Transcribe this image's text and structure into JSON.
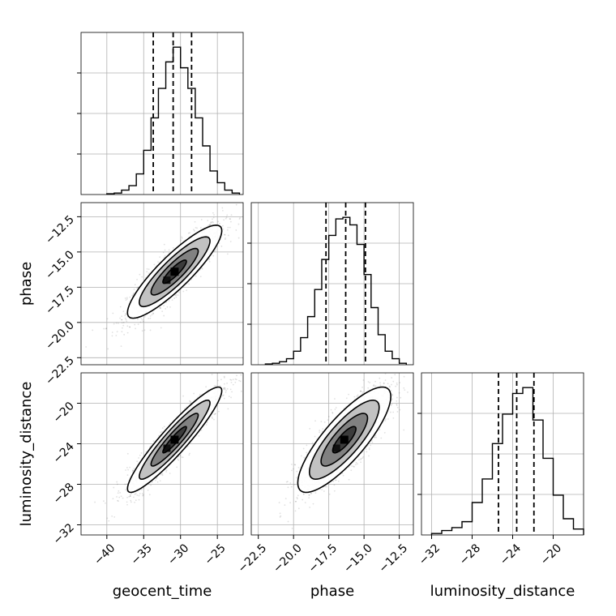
{
  "chart_data": [
    {
      "type": "histogram",
      "panel": "1D marginal",
      "parameter": "geocent_time",
      "xlim": [
        -43.5,
        -21.5
      ],
      "bin_edges": [
        -40,
        -39,
        -38,
        -37,
        -36,
        -35,
        -34,
        -33,
        -32,
        -31,
        -30,
        -29,
        -28,
        -27,
        -26,
        -25,
        -24,
        -23,
        -22
      ],
      "counts": [
        0.5,
        1,
        3,
        6,
        14,
        30,
        52,
        72,
        90,
        100,
        86,
        72,
        52,
        33,
        16,
        8,
        3,
        1
      ],
      "quantiles": [
        -33.7,
        -31.0,
        -28.5
      ],
      "grid": true
    },
    {
      "type": "histogram",
      "panel": "1D marginal",
      "parameter": "phase",
      "xlim": [
        -23.0,
        -11.5
      ],
      "bin_edges": [
        -22,
        -21.5,
        -21,
        -20.5,
        -20,
        -19.5,
        -19,
        -18.5,
        -18,
        -17.5,
        -17,
        -16.5,
        -16,
        -15.5,
        -15,
        -14.5,
        -14,
        -13.5,
        -13,
        -12.5,
        -12
      ],
      "counts": [
        0.5,
        1,
        2,
        4,
        9,
        18,
        32,
        50,
        70,
        86,
        97,
        98,
        93,
        80,
        60,
        38,
        20,
        9,
        4,
        1
      ],
      "quantiles": [
        -17.7,
        -16.3,
        -14.9
      ],
      "grid": true
    },
    {
      "type": "histogram",
      "panel": "1D marginal",
      "parameter": "luminosity_distance",
      "xlim": [
        -33.0,
        -17.0
      ],
      "bin_edges": [
        -32,
        -31,
        -30,
        -29,
        -28,
        -27,
        -26,
        -25,
        -24,
        -23,
        -22,
        -21,
        -20,
        -19,
        -18,
        -17
      ],
      "counts": [
        1,
        3,
        5,
        9,
        22,
        38,
        62,
        82,
        96,
        100,
        78,
        52,
        27,
        11,
        4
      ],
      "quantiles": [
        -25.4,
        -23.6,
        -21.9
      ],
      "grid": true
    },
    {
      "type": "scatter-contour",
      "panel": "2D",
      "x_param": "geocent_time",
      "y_param": "phase",
      "xlim": [
        -43.5,
        -21.5
      ],
      "ylim": [
        -23.0,
        -11.5
      ],
      "mean": [
        -30.8,
        -16.4
      ],
      "sigma": [
        3.2,
        1.65
      ],
      "correlation": 0.88,
      "levels_sigma": [
        0.5,
        1.0,
        1.5,
        2.0
      ],
      "grid": true
    },
    {
      "type": "scatter-contour",
      "panel": "2D",
      "x_param": "geocent_time",
      "y_param": "luminosity_distance",
      "xlim": [
        -43.5,
        -21.5
      ],
      "ylim": [
        -33.0,
        -17.0
      ],
      "mean": [
        -30.8,
        -23.6
      ],
      "sigma": [
        3.2,
        2.6
      ],
      "correlation": 0.93,
      "levels_sigma": [
        0.5,
        1.0,
        1.5,
        2.0
      ],
      "grid": true
    },
    {
      "type": "scatter-contour",
      "panel": "2D",
      "x_param": "phase",
      "y_param": "luminosity_distance",
      "xlim": [
        -23.0,
        -11.5
      ],
      "ylim": [
        -33.0,
        -17.0
      ],
      "mean": [
        -16.4,
        -23.6
      ],
      "sigma": [
        1.65,
        2.6
      ],
      "correlation": 0.82,
      "levels_sigma": [
        0.5,
        1.0,
        1.5,
        2.0
      ],
      "grid": true
    }
  ],
  "axes": {
    "geocent_time": {
      "label": "geocent_time",
      "ticks": [
        -40,
        -35,
        -30,
        -25
      ],
      "tick_labels": [
        "−40",
        "−35",
        "−30",
        "−25"
      ]
    },
    "phase": {
      "label": "phase",
      "ticks": [
        -22.5,
        -20.0,
        -17.5,
        -15.0,
        -12.5
      ],
      "tick_labels": [
        "−22.5",
        "−20.0",
        "−17.5",
        "−15.0",
        "−12.5"
      ]
    },
    "luminosity_distance": {
      "label": "luminosity_distance",
      "ticks": [
        -32,
        -28,
        -24,
        -20
      ],
      "tick_labels": [
        "−32",
        "−28",
        "−24",
        "−20"
      ]
    }
  },
  "colors": {
    "line": "#000000",
    "grid": "#b0b0b0",
    "points": "#000000",
    "background": "#ffffff"
  }
}
